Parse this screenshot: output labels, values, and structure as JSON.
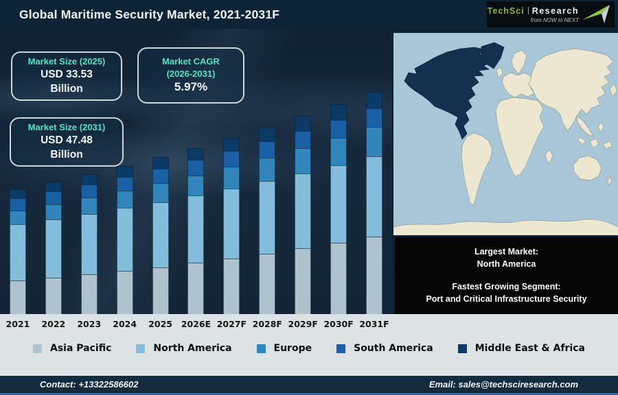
{
  "theme": {
    "accent_teal": "#5ce0c6",
    "header_bg": "#0d2336",
    "panel_bg": "#16293c",
    "strip_bg": "#dde3e5",
    "footer_bg": "#122c3e",
    "footer_accent": "#2d64a0",
    "map_ocean": "#a9c7d7",
    "map_land": "#ece7d0",
    "map_highlight": "#13304e",
    "box_black": "#060606"
  },
  "header": {
    "title": "Global Maritime Security Market, 2021-2031F",
    "logo": {
      "brand_primary": "TechSci",
      "brand_secondary": "Research",
      "tagline": "from NOW to NEXT"
    }
  },
  "callouts": {
    "market_size_2025": {
      "label": "Market Size (2025)",
      "value": "USD 33.53",
      "unit": "Billion"
    },
    "market_cagr": {
      "label": "Market CAGR",
      "sublabel": "(2026-2031)",
      "value": "5.97%"
    },
    "market_size_2031": {
      "label": "Market Size (2031)",
      "value": "USD 47.48",
      "unit": "Billion"
    }
  },
  "map_panel": {
    "highlight_region": "North America"
  },
  "info_box": {
    "largest_market_label": "Largest Market:",
    "largest_market_value": "North America",
    "fastest_segment_label": "Fastest Growing Segment:",
    "fastest_segment_value": "Port and Critical Infrastructure Security"
  },
  "footer": {
    "contact": "Contact: +13322586602",
    "email": "Email: sales@techsciresearch.com"
  },
  "chart_data": {
    "type": "bar",
    "stacked": true,
    "title": "Global Maritime Security Market, 2021-2031F",
    "unit": "USD Billion",
    "grid": false,
    "y_axis_visible": false,
    "legend_position": "bottom",
    "categories": [
      "2021",
      "2022",
      "2023",
      "2024",
      "2025",
      "2026E",
      "2027F",
      "2028F",
      "2029F",
      "2030F",
      "2031F"
    ],
    "series": [
      {
        "name": "Asia Pacific",
        "color": "#aec3cd",
        "values": [
          7.12,
          7.76,
          8.46,
          9.22,
          10.03,
          10.93,
          11.89,
          12.93,
          14.05,
          15.27,
          16.57
        ]
      },
      {
        "name": "North America",
        "color": "#84bcdc",
        "values": [
          12.09,
          12.53,
          12.99,
          13.46,
          13.94,
          14.44,
          14.96,
          15.49,
          16.03,
          16.58,
          17.14
        ]
      },
      {
        "name": "Europe",
        "color": "#3285ba",
        "values": [
          2.92,
          3.15,
          3.41,
          3.68,
          3.98,
          4.3,
          4.65,
          5.02,
          5.42,
          5.85,
          6.31
        ]
      },
      {
        "name": "South America",
        "color": "#1b5fa5",
        "values": [
          2.68,
          2.78,
          2.89,
          3.01,
          3.13,
          3.25,
          3.38,
          3.52,
          3.65,
          3.8,
          3.94
        ]
      },
      {
        "name": "Middle East & Africa",
        "color": "#0c3a66",
        "values": [
          1.94,
          2.08,
          2.2,
          2.32,
          2.45,
          2.61,
          2.77,
          2.94,
          3.13,
          3.31,
          3.52
        ]
      }
    ],
    "totals": [
      26.75,
      28.3,
      29.95,
      31.69,
      33.53,
      35.53,
      37.65,
      39.9,
      42.28,
      44.81,
      47.48
    ]
  }
}
